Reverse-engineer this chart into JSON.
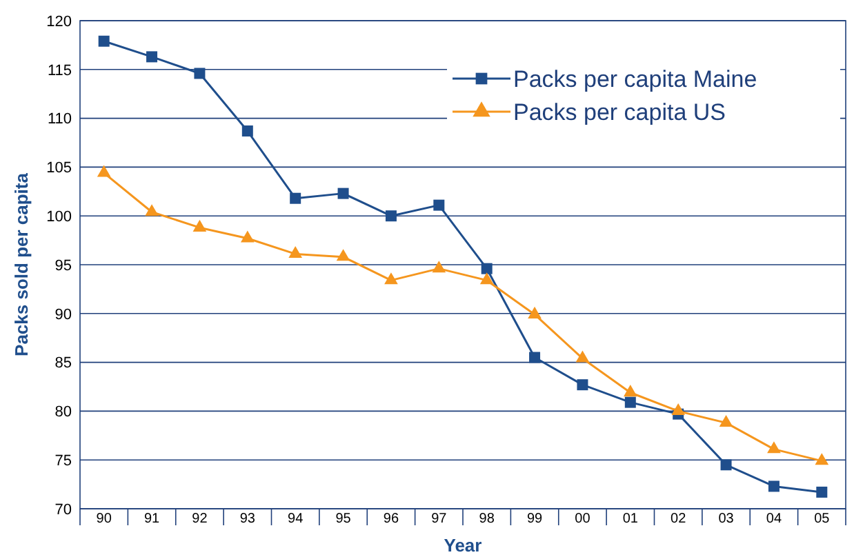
{
  "chart_data": {
    "type": "line",
    "xlabel": "Year",
    "ylabel": "Packs sold per capita",
    "categories": [
      "90",
      "91",
      "92",
      "93",
      "94",
      "95",
      "96",
      "97",
      "98",
      "99",
      "00",
      "01",
      "02",
      "03",
      "04",
      "05"
    ],
    "series": [
      {
        "name": "Packs per capita Maine",
        "color": "#1f4e8c",
        "marker": "square",
        "values": [
          117.9,
          116.3,
          114.6,
          108.7,
          101.8,
          102.3,
          100,
          101.1,
          94.6,
          85.5,
          82.7,
          80.9,
          79.7,
          74.5,
          72.3,
          71.7
        ]
      },
      {
        "name": "Packs per capita US",
        "color": "#f5961e",
        "marker": "triangle",
        "values": [
          104.4,
          100.4,
          98.8,
          97.7,
          96.1,
          95.8,
          93.4,
          94.6,
          93.4,
          89.9,
          85.4,
          81.9,
          80,
          78.8,
          76.1,
          74.9
        ]
      }
    ],
    "ylim": [
      70,
      120
    ],
    "yticks": [
      70,
      75,
      80,
      85,
      90,
      95,
      100,
      105,
      110,
      115,
      120
    ],
    "grid": "y",
    "legend": "top right",
    "line_style": "solid"
  }
}
